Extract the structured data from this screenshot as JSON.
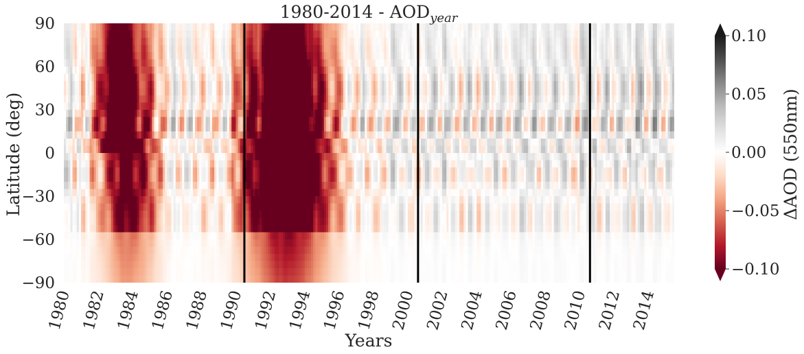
{
  "chart_data": {
    "type": "heatmap",
    "title_main": "1980-2014 - AOD",
    "title_sub": "year",
    "xlabel": "Years",
    "ylabel": "Latitude (deg)",
    "colorbar_label": "ΔAOD (550nm)",
    "x_range": [
      1980,
      2015.5
    ],
    "y_range": [
      -90,
      90
    ],
    "x_ticks": [
      "1980",
      "1982",
      "1984",
      "1986",
      "1988",
      "1990",
      "1992",
      "1994",
      "1996",
      "1998",
      "2000",
      "2002",
      "2004",
      "2006",
      "2008",
      "2010",
      "2012",
      "2014"
    ],
    "x_tick_values": [
      1980,
      1982,
      1984,
      1986,
      1988,
      1990,
      1992,
      1994,
      1996,
      1998,
      2000,
      2002,
      2004,
      2006,
      2008,
      2010,
      2012,
      2014
    ],
    "y_ticks": [
      "90",
      "60",
      "30",
      "0",
      "−30",
      "−60",
      "−90"
    ],
    "y_tick_values": [
      90,
      60,
      30,
      0,
      -30,
      -60,
      -90
    ],
    "colorbar_ticks": [
      "0.10",
      "0.05",
      "0.00",
      "−0.05",
      "−0.10"
    ],
    "colorbar_tick_values": [
      0.1,
      0.05,
      0.0,
      -0.05,
      -0.1
    ],
    "vmin": -0.1,
    "vmax": 0.1,
    "colormap": "RdGy",
    "colormap_stops": [
      "#67001f",
      "#b2182b",
      "#d6604d",
      "#f4a582",
      "#fddbc7",
      "#ffffff",
      "#e0e0e0",
      "#bababa",
      "#878787",
      "#4d4d4d",
      "#1a1a1a"
    ],
    "decade_divider_years": [
      1990.5,
      2000.6,
      2010.6
    ],
    "anomaly_events": [
      {
        "center": 1983.8,
        "width": 1.6,
        "amp": -0.085,
        "lat_min": -90,
        "lat_max": 90
      },
      {
        "center": 1993.0,
        "width": 2.4,
        "amp": -0.14,
        "lat_min": -90,
        "lat_max": 90
      },
      {
        "center": 1982.8,
        "width": 0.9,
        "amp": -0.05,
        "lat_min": 0,
        "lat_max": 90
      }
    ]
  }
}
